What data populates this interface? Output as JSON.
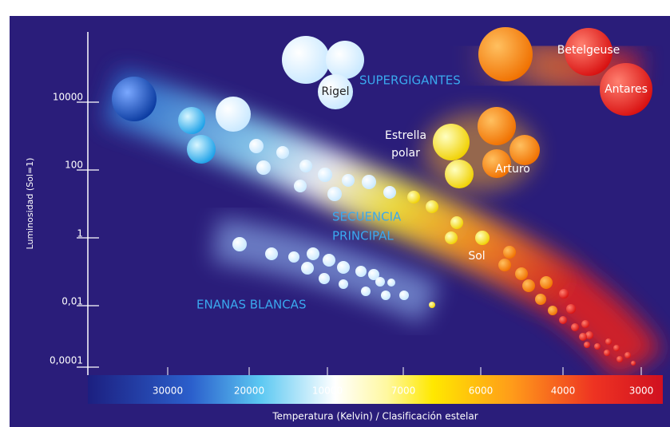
{
  "y_axis": {
    "label": "Luminosidad (Sol=1)",
    "ticks": [
      "10000",
      "100",
      "1",
      "0,01",
      "0,0001"
    ]
  },
  "x_axis": {
    "label": "Temperatura (Kelvin) / Clasificación estelar",
    "ticks": [
      "30000",
      "20000",
      "10000",
      "7000",
      "6000",
      "4000",
      "3000"
    ]
  },
  "regions": [
    "SUPERGIGANTES",
    "SECUENCIA",
    "PRINCIPAL",
    "ENANAS BLANCAS"
  ],
  "stars": {
    "rigel": "Rigel",
    "betelgeuse": "Betelgeuse",
    "antares": "Antares",
    "polaris_1": "Estrella",
    "polaris_2": "polar",
    "arturo": "Arturo",
    "sol": "Sol"
  }
}
